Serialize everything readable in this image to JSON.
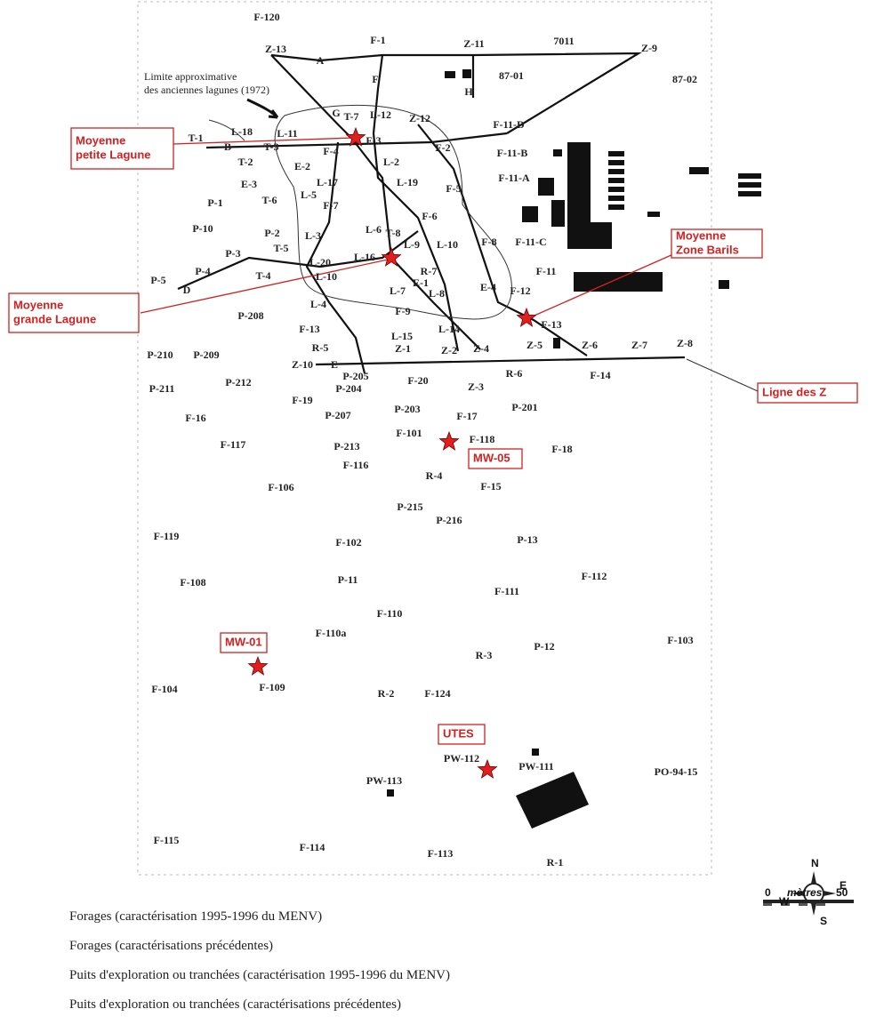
{
  "map_labels": [
    "F-120",
    "F-1",
    "Z-11",
    "7011",
    "Z-9",
    "Z-13",
    "A",
    "87-01",
    "87-02",
    "F",
    "H",
    "G",
    "T-7",
    "L-12",
    "Z-12",
    "F-11-D",
    "T-1",
    "L-18",
    "L-11",
    "F-3",
    "B",
    "T-3",
    "F-4",
    "F-2",
    "F-11-B",
    "T-2",
    "E-2",
    "L-2",
    "L-17",
    "L-19",
    "E-3",
    "F-11-A",
    "F-5",
    "L-5",
    "P-1",
    "T-6",
    "F-7",
    "F-6",
    "P-10",
    "P-2",
    "L-3",
    "L-6",
    "T-8",
    "L-9",
    "L-10",
    "F-8",
    "F-11-C",
    "P-3",
    "T-5",
    "L-16",
    "L-20",
    "R-7",
    "F-11",
    "P-4",
    "T-4",
    "L-10",
    "P-5",
    "D",
    "E-1",
    "L-8",
    "E-4",
    "F-12",
    "L-7",
    "L-4",
    "F-9",
    "F-13",
    "P-208",
    "F-13",
    "L-15",
    "L-14",
    "R-5",
    "Z-1",
    "Z-2",
    "Z-4",
    "Z-5",
    "Z-6",
    "Z-7",
    "Z-8",
    "P-210",
    "P-209",
    "Z-10",
    "E",
    "P-205",
    "F-20",
    "R-6",
    "F-14",
    "Z-3",
    "P-211",
    "P-212",
    "P-204",
    "F-19",
    "P-203",
    "F-17",
    "P-201",
    "F-16",
    "P-207",
    "F-101",
    "F-118",
    "F-18",
    "F-117",
    "P-213",
    "F-116",
    "R-4",
    "F-15",
    "F-106",
    "P-215",
    "P-216",
    "F-119",
    "F-102",
    "P-13",
    "F-112",
    "F-108",
    "P-11",
    "F-111",
    "F-110",
    "F-110a",
    "F-103",
    "P-12",
    "R-3",
    "F-104",
    "F-109",
    "R-2",
    "F-124",
    "PW-112",
    "PW-111",
    "PO-94-15",
    "PW-113",
    "F-115",
    "F-114",
    "F-113",
    "R-1"
  ],
  "callouts": [
    {
      "lines": [
        "Moyenne",
        "petite Lagune"
      ]
    },
    {
      "lines": [
        "Moyenne",
        "grande Lagune"
      ]
    },
    {
      "lines": [
        "Moyenne",
        "Zone Barils"
      ]
    },
    {
      "lines": [
        "Ligne des Z"
      ]
    },
    {
      "lines": [
        "MW-05"
      ]
    },
    {
      "lines": [
        "MW-01"
      ]
    },
    {
      "lines": [
        "UTES"
      ]
    }
  ],
  "note": [
    "Limite approximative",
    "des anciennes lagunes (1972)"
  ],
  "legend": [
    "Forages (caractérisation 1995-1996 du MENV)",
    "Forages (caractérisations précédentes)",
    "Puits d'exploration ou tranchées (caractérisation 1995-1996 du MENV)",
    "Puits d'exploration ou tranchées (caractérisations précédentes)"
  ],
  "scale": {
    "min": 0,
    "unit": "mètres",
    "max": 50
  },
  "compass": [
    "N",
    "E",
    "S",
    "W"
  ]
}
